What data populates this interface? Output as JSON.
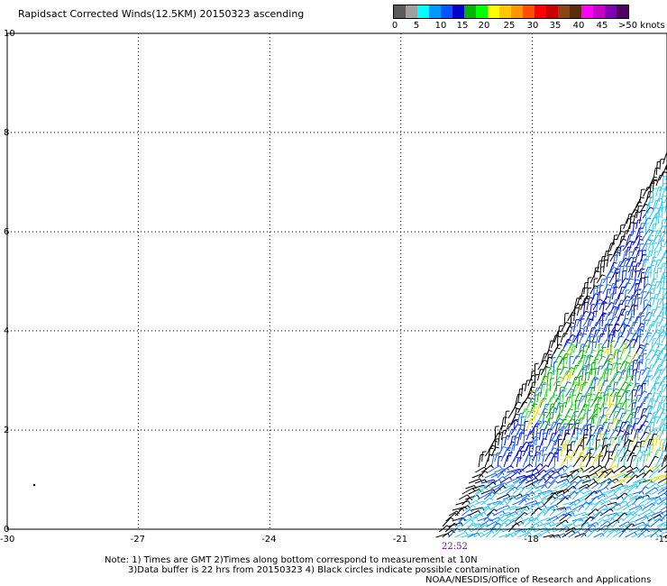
{
  "title": "Rapidsact Corrected Winds(12.5KM) 20150323 ascending",
  "legend": {
    "colors": [
      "#5a5a5a",
      "#a0a0a0",
      "#00ffff",
      "#0099ff",
      "#0055ff",
      "#0000c8",
      "#00b400",
      "#00ff00",
      "#ffff00",
      "#ffc800",
      "#ff9600",
      "#ff5000",
      "#ff0000",
      "#c80000",
      "#8b4513",
      "#5a2d0c",
      "#ff00ff",
      "#c800c8",
      "#8200b4",
      "#500064"
    ],
    "labels": [
      "0",
      "5",
      "10",
      "15",
      "20",
      "25",
      "30",
      "35",
      "40",
      "45",
      ">50 knots"
    ]
  },
  "axes": {
    "x_ticks": [
      "-30",
      "-27",
      "-24",
      "-21",
      "-18",
      "-15"
    ],
    "y_ticks": [
      "0",
      "2",
      "4",
      "6",
      "8",
      "10"
    ]
  },
  "timestamp": "22:52",
  "notes": {
    "line1": "Note: 1) Times are GMT 2)Times along bottom correspond to measurement at 10N",
    "line2": "3)Data buffer is 22 hrs from 20150323 4) Black circles indicate possible contamination",
    "credit": "NOAA/NESDIS/Office of Research and Applications"
  },
  "wind_colors": {
    "light_cyan": "#33ccee",
    "mid_blue": "#1a66ff",
    "dark_blue": "#0000cc",
    "green": "#00b000",
    "light_green": "#33dd33",
    "yellow": "#dddd00",
    "black": "#000000"
  }
}
